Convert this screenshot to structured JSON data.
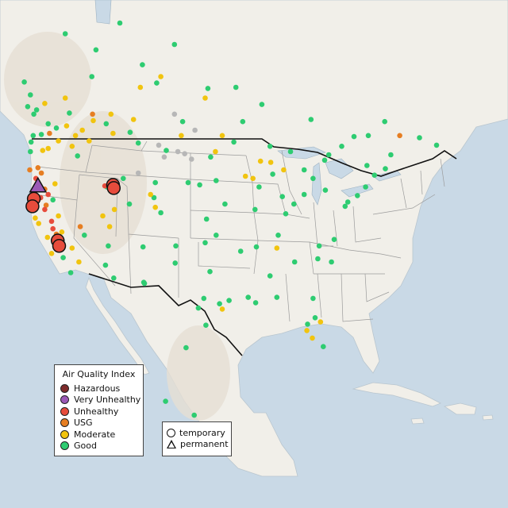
{
  "colors": {
    "water": "#c9d9e6",
    "land": "#f1efe9",
    "terrain": "#e6dfd3",
    "states": "#9b9b9b",
    "border": "#111111",
    "no_data": "#b7b7b7"
  },
  "legend": {
    "title": "Air Quality Index",
    "categories": [
      {
        "key": "hazardous",
        "label": "Hazardous",
        "color": "#7e2b2b"
      },
      {
        "key": "very_unhealthy",
        "label": "Very Unhealthy",
        "color": "#9b59b6"
      },
      {
        "key": "unhealthy",
        "label": "Unhealthy",
        "color": "#e74c3c"
      },
      {
        "key": "usg",
        "label": "USG",
        "color": "#e67e22"
      },
      {
        "key": "moderate",
        "label": "Moderate",
        "color": "#f1c40f"
      },
      {
        "key": "good",
        "label": "Good",
        "color": "#2ecc71"
      }
    ]
  },
  "monitor_types": [
    {
      "key": "temporary",
      "label": "temporary",
      "symbol": "circle"
    },
    {
      "key": "permanent",
      "label": "permanent",
      "symbol": "triangle"
    }
  ],
  "chart_data": {
    "type": "scatter",
    "extent": {
      "lon": [
        -128,
        -60
      ],
      "lat": [
        14,
        60
      ]
    },
    "series": [
      {
        "key": "good",
        "points": [
          [
            -123.5,
            48.2
          ],
          [
            -122.6,
            47.5
          ],
          [
            -122.2,
            47.9
          ],
          [
            -121.5,
            45.6
          ],
          [
            -122.7,
            45.5
          ],
          [
            -123.0,
            44.9
          ],
          [
            -123.1,
            44.0
          ],
          [
            -117.4,
            47.6
          ],
          [
            -116.2,
            43.6
          ],
          [
            -112.0,
            46.6
          ],
          [
            -108.5,
            45.8
          ],
          [
            -106.6,
            35.1
          ],
          [
            -105.0,
            39.7
          ],
          [
            -104.8,
            41.1
          ],
          [
            -111.9,
            40.7
          ],
          [
            -112.1,
            33.4
          ],
          [
            -110.9,
            32.2
          ],
          [
            -97.3,
            37.7
          ],
          [
            -95.9,
            41.3
          ],
          [
            -96.8,
            32.8
          ],
          [
            -95.4,
            29.8
          ],
          [
            -98.5,
            29.4
          ],
          [
            -97.7,
            30.3
          ],
          [
            -90.2,
            38.6
          ],
          [
            -94.6,
            39.1
          ],
          [
            -93.3,
            44.9
          ],
          [
            -87.6,
            41.9
          ],
          [
            -86.2,
            39.8
          ],
          [
            -83.0,
            40.0
          ],
          [
            -84.4,
            33.7
          ],
          [
            -86.8,
            36.2
          ],
          [
            -90.0,
            35.1
          ],
          [
            -90.1,
            29.9
          ],
          [
            -81.7,
            30.3
          ],
          [
            -82.5,
            27.9
          ],
          [
            -80.2,
            25.8
          ],
          [
            -81.4,
            28.5
          ],
          [
            -78.6,
            35.8
          ],
          [
            -80.8,
            35.2
          ],
          [
            -77.0,
            38.9
          ],
          [
            -76.6,
            39.3
          ],
          [
            -75.2,
            39.9
          ],
          [
            -74.0,
            40.7
          ],
          [
            -73.8,
            42.7
          ],
          [
            -71.1,
            42.4
          ],
          [
            -72.7,
            41.8
          ],
          [
            -70.3,
            43.7
          ],
          [
            -79.9,
            40.4
          ],
          [
            -81.7,
            41.5
          ],
          [
            -83.0,
            42.3
          ],
          [
            -85.7,
            38.2
          ],
          [
            -92.3,
            34.7
          ],
          [
            -97.5,
            35.5
          ],
          [
            -95.9,
            36.2
          ],
          [
            -100.8,
            46.8
          ],
          [
            -106.7,
            52.1
          ],
          [
            -114.1,
            51.0
          ],
          [
            -113.5,
            53.5
          ],
          [
            -123.1,
            49.3
          ],
          [
            -97.1,
            49.9
          ],
          [
            -79.4,
            43.7
          ],
          [
            -75.7,
            45.4
          ],
          [
            -73.6,
            45.5
          ],
          [
            -71.2,
            46.8
          ],
          [
            -63.6,
            44.6
          ],
          [
            -66.1,
            45.3
          ],
          [
            -80.0,
            43.2
          ],
          [
            -82.0,
            47.0
          ],
          [
            -89.2,
            48.4
          ],
          [
            -104.6,
            50.4
          ],
          [
            -99.1,
            19.4
          ],
          [
            -100.3,
            25.7
          ],
          [
            -106.4,
            31.7
          ],
          [
            -103.3,
            20.7
          ],
          [
            -124.0,
            50.5
          ],
          [
            -118.0,
            55.0
          ],
          [
            -110.0,
            56.0
          ],
          [
            -102.0,
            54.0
          ],
          [
            -93.0,
            50.0
          ],
          [
            -77.5,
            44.5
          ],
          [
            -88.0,
            44.5
          ],
          [
            -92.0,
            46.8
          ],
          [
            -85.0,
            44.0
          ],
          [
            -89.6,
            40.7
          ],
          [
            -84.5,
            39.1
          ],
          [
            -81.0,
            34.0
          ],
          [
            -79.0,
            33.7
          ],
          [
            -87.0,
            30.4
          ],
          [
            -88.0,
            32.4
          ],
          [
            -91.2,
            30.4
          ],
          [
            -94.0,
            30.1
          ],
          [
            -97.4,
            27.8
          ],
          [
            -101.8,
            35.2
          ],
          [
            -101.9,
            33.6
          ],
          [
            -106.5,
            31.8
          ],
          [
            -120.5,
            46.6
          ],
          [
            -119.3,
            46.2
          ],
          [
            -118.3,
            34.1
          ],
          [
            -117.2,
            32.7
          ],
          [
            -115.2,
            36.2
          ],
          [
            -119.8,
            39.5
          ],
          [
            -109.5,
            41.5
          ],
          [
            -107.3,
            44.8
          ],
          [
            -103.2,
            44.1
          ],
          [
            -96.7,
            43.5
          ],
          [
            -98.3,
            40.9
          ],
          [
            -100.0,
            41.1
          ],
          [
            -104.0,
            38.3
          ],
          [
            -108.6,
            39.1
          ],
          [
            -111.7,
            35.2
          ]
        ]
      },
      {
        "key": "moderate",
        "points": [
          [
            -121.3,
            44.1
          ],
          [
            -120.5,
            44.3
          ],
          [
            -119.0,
            45.0
          ],
          [
            -117.0,
            44.5
          ],
          [
            -116.5,
            45.5
          ],
          [
            -115.5,
            46.0
          ],
          [
            -113.9,
            46.9
          ],
          [
            -114.5,
            45.0
          ],
          [
            -111.0,
            45.7
          ],
          [
            -117.8,
            46.4
          ],
          [
            -119.5,
            41.0
          ],
          [
            -119.0,
            38.0
          ],
          [
            -118.5,
            36.5
          ],
          [
            -117.0,
            35.0
          ],
          [
            -116.0,
            33.7
          ],
          [
            -112.5,
            38.0
          ],
          [
            -111.5,
            37.0
          ],
          [
            -110.8,
            38.6
          ],
          [
            -104.8,
            38.8
          ],
          [
            -105.5,
            40.0
          ],
          [
            -96.0,
            44.0
          ],
          [
            -95.0,
            45.5
          ],
          [
            -101.0,
            45.5
          ],
          [
            -87.9,
            43.0
          ],
          [
            -86.0,
            42.3
          ],
          [
            -89.4,
            43.1
          ],
          [
            -90.5,
            41.5
          ],
          [
            -91.6,
            41.7
          ],
          [
            -87.0,
            35.0
          ],
          [
            -82.6,
            27.3
          ],
          [
            -81.8,
            26.6
          ],
          [
            -80.6,
            28.1
          ],
          [
            -95.0,
            29.3
          ],
          [
            -122.4,
            37.8
          ],
          [
            -121.9,
            37.3
          ],
          [
            -120.6,
            36.0
          ],
          [
            -120.0,
            34.5
          ],
          [
            -107.0,
            50.0
          ],
          [
            -104.0,
            51.0
          ],
          [
            -97.5,
            49.0
          ],
          [
            -111.3,
            47.5
          ],
          [
            -108.0,
            47.0
          ],
          [
            -121.0,
            48.5
          ],
          [
            -118.0,
            49.0
          ]
        ]
      },
      {
        "key": "usg",
        "points": [
          [
            -122.0,
            42.5
          ],
          [
            -121.5,
            42.0
          ],
          [
            -123.2,
            42.3
          ],
          [
            -121.0,
            40.5
          ],
          [
            -120.8,
            39.0
          ],
          [
            -119.3,
            36.3
          ],
          [
            -118.8,
            35.4
          ],
          [
            -115.8,
            37.0
          ],
          [
            -120.3,
            45.7
          ],
          [
            -69.0,
            45.5
          ],
          [
            -114.0,
            47.5
          ]
        ]
      },
      {
        "key": "unhealthy",
        "points": [
          [
            -120.5,
            40.0
          ],
          [
            -121.6,
            39.7
          ],
          [
            -121.0,
            38.6
          ],
          [
            -120.0,
            37.5
          ],
          [
            -119.8,
            36.8
          ],
          [
            -119.0,
            36.0
          ],
          [
            -122.3,
            41.5
          ],
          [
            -112.2,
            40.8
          ],
          [
            -118.6,
            35.8
          ]
        ]
      }
    ],
    "large_markers": [
      {
        "category": "unhealthy",
        "type": "temporary",
        "lon": -122.6,
        "lat": 39.6
      },
      {
        "category": "unhealthy",
        "type": "temporary",
        "lon": -122.8,
        "lat": 38.9
      },
      {
        "category": "unhealthy",
        "type": "temporary",
        "lon": -119.1,
        "lat": 35.7
      },
      {
        "category": "unhealthy",
        "type": "temporary",
        "lon": -118.9,
        "lat": 35.2
      },
      {
        "category": "unhealthy",
        "type": "temporary",
        "lon": -111.0,
        "lat": 40.9
      },
      {
        "category": "unhealthy",
        "type": "temporary",
        "lon": -110.9,
        "lat": 40.6
      },
      {
        "category": "very_unhealthy",
        "type": "permanent",
        "lon": -122.0,
        "lat": 40.8
      }
    ],
    "no_data_points": [
      [
        -103.5,
        43.5
      ],
      [
        -101.5,
        44.0
      ],
      [
        -100.5,
        43.8
      ],
      [
        -99.5,
        43.3
      ],
      [
        -104.3,
        44.6
      ],
      [
        -107.3,
        42.0
      ],
      [
        -99.0,
        46.0
      ],
      [
        -102.0,
        47.5
      ]
    ]
  }
}
